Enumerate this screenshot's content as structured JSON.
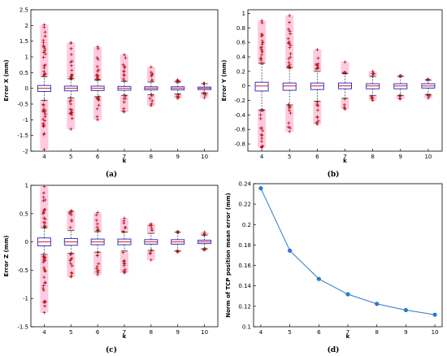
{
  "chart_data": [
    {
      "type": "box",
      "panel_label": "(a)",
      "xlabel": "k",
      "ylabel": "Error X (mm)",
      "categories": [
        "4",
        "5",
        "6",
        "7",
        "8",
        "9",
        "10"
      ],
      "ylim": [
        -2,
        2.5
      ],
      "yticks": [
        "-2",
        "-1.5",
        "-1",
        "-0.5",
        "0",
        "0.5",
        "1",
        "1.5",
        "2",
        "2.5"
      ],
      "yticks_values": [
        -2,
        -1.5,
        -1,
        -0.5,
        0,
        0.5,
        1,
        1.5,
        2,
        2.5
      ],
      "boxes": [
        {
          "k": 4,
          "whislo": -0.38,
          "q1": -0.1,
          "med": 0.0,
          "q3": 0.09,
          "whishi": 0.37,
          "flier_lo": -1.95,
          "flier_hi": 2.02
        },
        {
          "k": 5,
          "whislo": -0.3,
          "q1": -0.08,
          "med": 0.0,
          "q3": 0.07,
          "whishi": 0.3,
          "flier_lo": -1.3,
          "flier_hi": 1.45
        },
        {
          "k": 6,
          "whislo": -0.26,
          "q1": -0.07,
          "med": 0.0,
          "q3": 0.07,
          "whishi": 0.26,
          "flier_lo": -1.0,
          "flier_hi": 1.32
        },
        {
          "k": 7,
          "whislo": -0.22,
          "q1": -0.06,
          "med": 0.0,
          "q3": 0.06,
          "whishi": 0.22,
          "flier_lo": -0.75,
          "flier_hi": 1.07
        },
        {
          "k": 8,
          "whislo": -0.2,
          "q1": -0.05,
          "med": 0.0,
          "q3": 0.05,
          "whishi": 0.2,
          "flier_lo": -0.55,
          "flier_hi": 0.68
        },
        {
          "k": 9,
          "whislo": -0.18,
          "q1": -0.05,
          "med": 0.0,
          "q3": 0.05,
          "whishi": 0.2,
          "flier_lo": -0.32,
          "flier_hi": 0.27
        },
        {
          "k": 10,
          "whislo": -0.15,
          "q1": -0.04,
          "med": 0.0,
          "q3": 0.04,
          "whishi": 0.15,
          "flier_lo": -0.3,
          "flier_hi": 0.15
        }
      ],
      "colors": {
        "box": "#3a34c8",
        "median": "#d42020",
        "whisker": "#303030",
        "flier": "#b01818",
        "flier_glow": "#ff9fc6"
      }
    },
    {
      "type": "box",
      "panel_label": "(b)",
      "xlabel": "k",
      "ylabel": "Error Y (mm)",
      "categories": [
        "4",
        "5",
        "6",
        "7",
        "8",
        "9",
        "10"
      ],
      "ylim": [
        -0.9,
        1.05
      ],
      "yticks": [
        "-0.8",
        "-0.6",
        "-0.4",
        "-0.2",
        "0",
        "0.2",
        "0.4",
        "0.6",
        "0.8",
        "1"
      ],
      "yticks_values": [
        -0.8,
        -0.6,
        -0.4,
        -0.2,
        0,
        0.2,
        0.4,
        0.6,
        0.8,
        1
      ],
      "boxes": [
        {
          "k": 4,
          "whislo": -0.33,
          "q1": -0.07,
          "med": 0.0,
          "q3": 0.05,
          "whishi": 0.31,
          "flier_lo": -0.85,
          "flier_hi": 0.9
        },
        {
          "k": 5,
          "whislo": -0.26,
          "q1": -0.06,
          "med": 0.0,
          "q3": 0.04,
          "whishi": 0.25,
          "flier_lo": -0.63,
          "flier_hi": 0.97
        },
        {
          "k": 6,
          "whislo": -0.21,
          "q1": -0.05,
          "med": 0.0,
          "q3": 0.04,
          "whishi": 0.2,
          "flier_lo": -0.53,
          "flier_hi": 0.5
        },
        {
          "k": 7,
          "whislo": -0.17,
          "q1": -0.04,
          "med": 0.0,
          "q3": 0.04,
          "whishi": 0.17,
          "flier_lo": -0.32,
          "flier_hi": 0.33
        },
        {
          "k": 8,
          "whislo": -0.13,
          "q1": -0.04,
          "med": 0.0,
          "q3": 0.03,
          "whishi": 0.13,
          "flier_lo": -0.2,
          "flier_hi": 0.2
        },
        {
          "k": 9,
          "whislo": -0.13,
          "q1": -0.04,
          "med": 0.0,
          "q3": 0.03,
          "whishi": 0.13,
          "flier_lo": -0.18,
          "flier_hi": 0.14
        },
        {
          "k": 10,
          "whislo": -0.12,
          "q1": -0.03,
          "med": 0.0,
          "q3": 0.03,
          "whishi": 0.08,
          "flier_lo": -0.17,
          "flier_hi": 0.09
        }
      ],
      "colors": {
        "box": "#3a34c8",
        "median": "#d42020",
        "whisker": "#303030",
        "flier": "#b01818",
        "flier_glow": "#ff9fc6"
      }
    },
    {
      "type": "box",
      "panel_label": "(c)",
      "xlabel": "k",
      "ylabel": "Error Z (mm)",
      "categories": [
        "4",
        "5",
        "6",
        "7",
        "8",
        "9",
        "10"
      ],
      "ylim": [
        -1.5,
        1.0
      ],
      "yticks": [
        "-1.5",
        "-1",
        "-0.5",
        "0",
        "0.5",
        "1"
      ],
      "yticks_values": [
        -1.5,
        -1,
        -0.5,
        0,
        0.5,
        1
      ],
      "boxes": [
        {
          "k": 4,
          "whislo": -0.22,
          "q1": -0.07,
          "med": 0.0,
          "q3": 0.07,
          "whishi": 0.25,
          "flier_lo": -1.25,
          "flier_hi": 0.98
        },
        {
          "k": 5,
          "whislo": -0.2,
          "q1": -0.06,
          "med": 0.0,
          "q3": 0.06,
          "whishi": 0.2,
          "flier_lo": -0.62,
          "flier_hi": 0.55
        },
        {
          "k": 6,
          "whislo": -0.18,
          "q1": -0.05,
          "med": 0.0,
          "q3": 0.05,
          "whishi": 0.18,
          "flier_lo": -0.58,
          "flier_hi": 0.52
        },
        {
          "k": 7,
          "whislo": -0.16,
          "q1": -0.05,
          "med": 0.0,
          "q3": 0.05,
          "whishi": 0.17,
          "flier_lo": -0.55,
          "flier_hi": 0.42
        },
        {
          "k": 8,
          "whislo": -0.15,
          "q1": -0.04,
          "med": 0.0,
          "q3": 0.04,
          "whishi": 0.15,
          "flier_lo": -0.32,
          "flier_hi": 0.32
        },
        {
          "k": 9,
          "whislo": -0.16,
          "q1": -0.04,
          "med": 0.0,
          "q3": 0.04,
          "whishi": 0.17,
          "flier_lo": -0.18,
          "flier_hi": 0.18
        },
        {
          "k": 10,
          "whislo": -0.12,
          "q1": -0.03,
          "med": 0.0,
          "q3": 0.03,
          "whishi": 0.12,
          "flier_lo": -0.14,
          "flier_hi": 0.17
        }
      ],
      "colors": {
        "box": "#3a34c8",
        "median": "#d42020",
        "whisker": "#303030",
        "flier": "#b01818",
        "flier_glow": "#ff9fc6"
      }
    },
    {
      "type": "line",
      "panel_label": "(d)",
      "xlabel": "k",
      "ylabel": "Norm of TCP position mean error (mm)",
      "x": [
        4,
        5,
        6,
        7,
        8,
        9,
        10
      ],
      "xticks": [
        "4",
        "5",
        "6",
        "7",
        "8",
        "9",
        "10"
      ],
      "y": [
        0.2355,
        0.1745,
        0.1468,
        0.1318,
        0.1224,
        0.1163,
        0.1118
      ],
      "ylim": [
        0.1,
        0.24
      ],
      "yticks": [
        "0.1",
        "0.12",
        "0.14",
        "0.16",
        "0.18",
        "0.2",
        "0.22",
        "0.24"
      ],
      "yticks_values": [
        0.1,
        0.12,
        0.14,
        0.16,
        0.18,
        0.2,
        0.22,
        0.24
      ],
      "color": "#2e78c6"
    }
  ]
}
